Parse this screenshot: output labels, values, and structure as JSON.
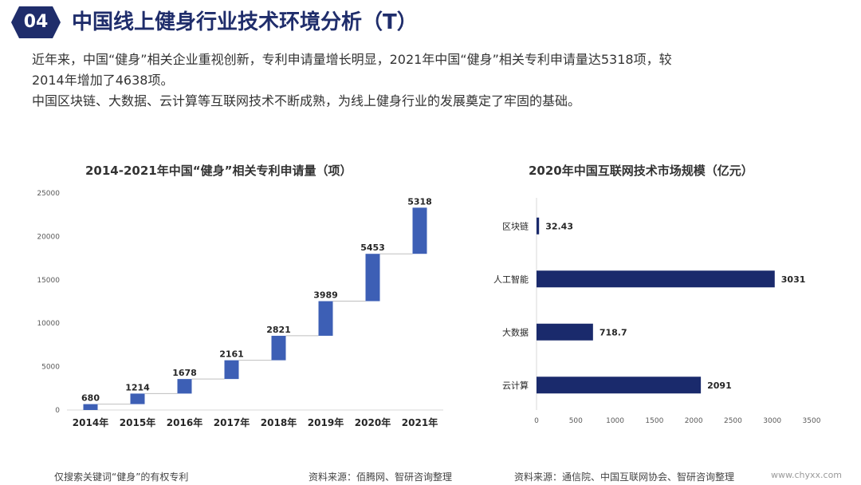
{
  "header": {
    "badge": "04",
    "title": "中国线上健身行业技术环境分析（T）"
  },
  "intro": {
    "line1": "近年来，中国“健身”相关企业重视创新，专利申请量增长明显，2021年中国“健身”相关专利申请量达5318项，较",
    "line2": "2014年增加了4638项。",
    "line3": "中国区块链、大数据、云计算等互联网技术不断成熟，为线上健身行业的发展奠定了牢固的基础。"
  },
  "colors": {
    "title": "#1f2d6b",
    "waterfall_bar": "#3d5fb5",
    "hbar": "#1a2a6c"
  },
  "chart_data": [
    {
      "type": "bar",
      "subtype": "waterfall",
      "title": "2014-2021年中国“健身”相关专利申请量（项）",
      "categories": [
        "2014年",
        "2015年",
        "2016年",
        "2017年",
        "2018年",
        "2019年",
        "2020年",
        "2021年"
      ],
      "values": [
        680,
        1214,
        1678,
        2161,
        2821,
        3989,
        5453,
        5318
      ],
      "ylim": [
        0,
        25000
      ],
      "yticks": [
        0,
        5000,
        10000,
        15000,
        20000,
        25000
      ],
      "grid": false,
      "note": "仅搜索关键词“健身”的有权专利",
      "source": "资料来源：佰腾网、智研咨询整理"
    },
    {
      "type": "bar",
      "orientation": "horizontal",
      "title": "2020年中国互联网技术市场规模（亿元）",
      "categories": [
        "区块链",
        "人工智能",
        "大数据",
        "云计算"
      ],
      "values": [
        32.43,
        3031,
        718.7,
        2091
      ],
      "value_labels": [
        "32.43",
        "3031",
        "718.7",
        "2091"
      ],
      "xlim": [
        0,
        3500
      ],
      "xticks": [
        0,
        500,
        1000,
        1500,
        2000,
        2500,
        3000,
        3500
      ],
      "grid": false,
      "source": "资料来源：通信院、中国互联网协会、智研咨询整理"
    }
  ],
  "watermark": "www.chyxx.com"
}
